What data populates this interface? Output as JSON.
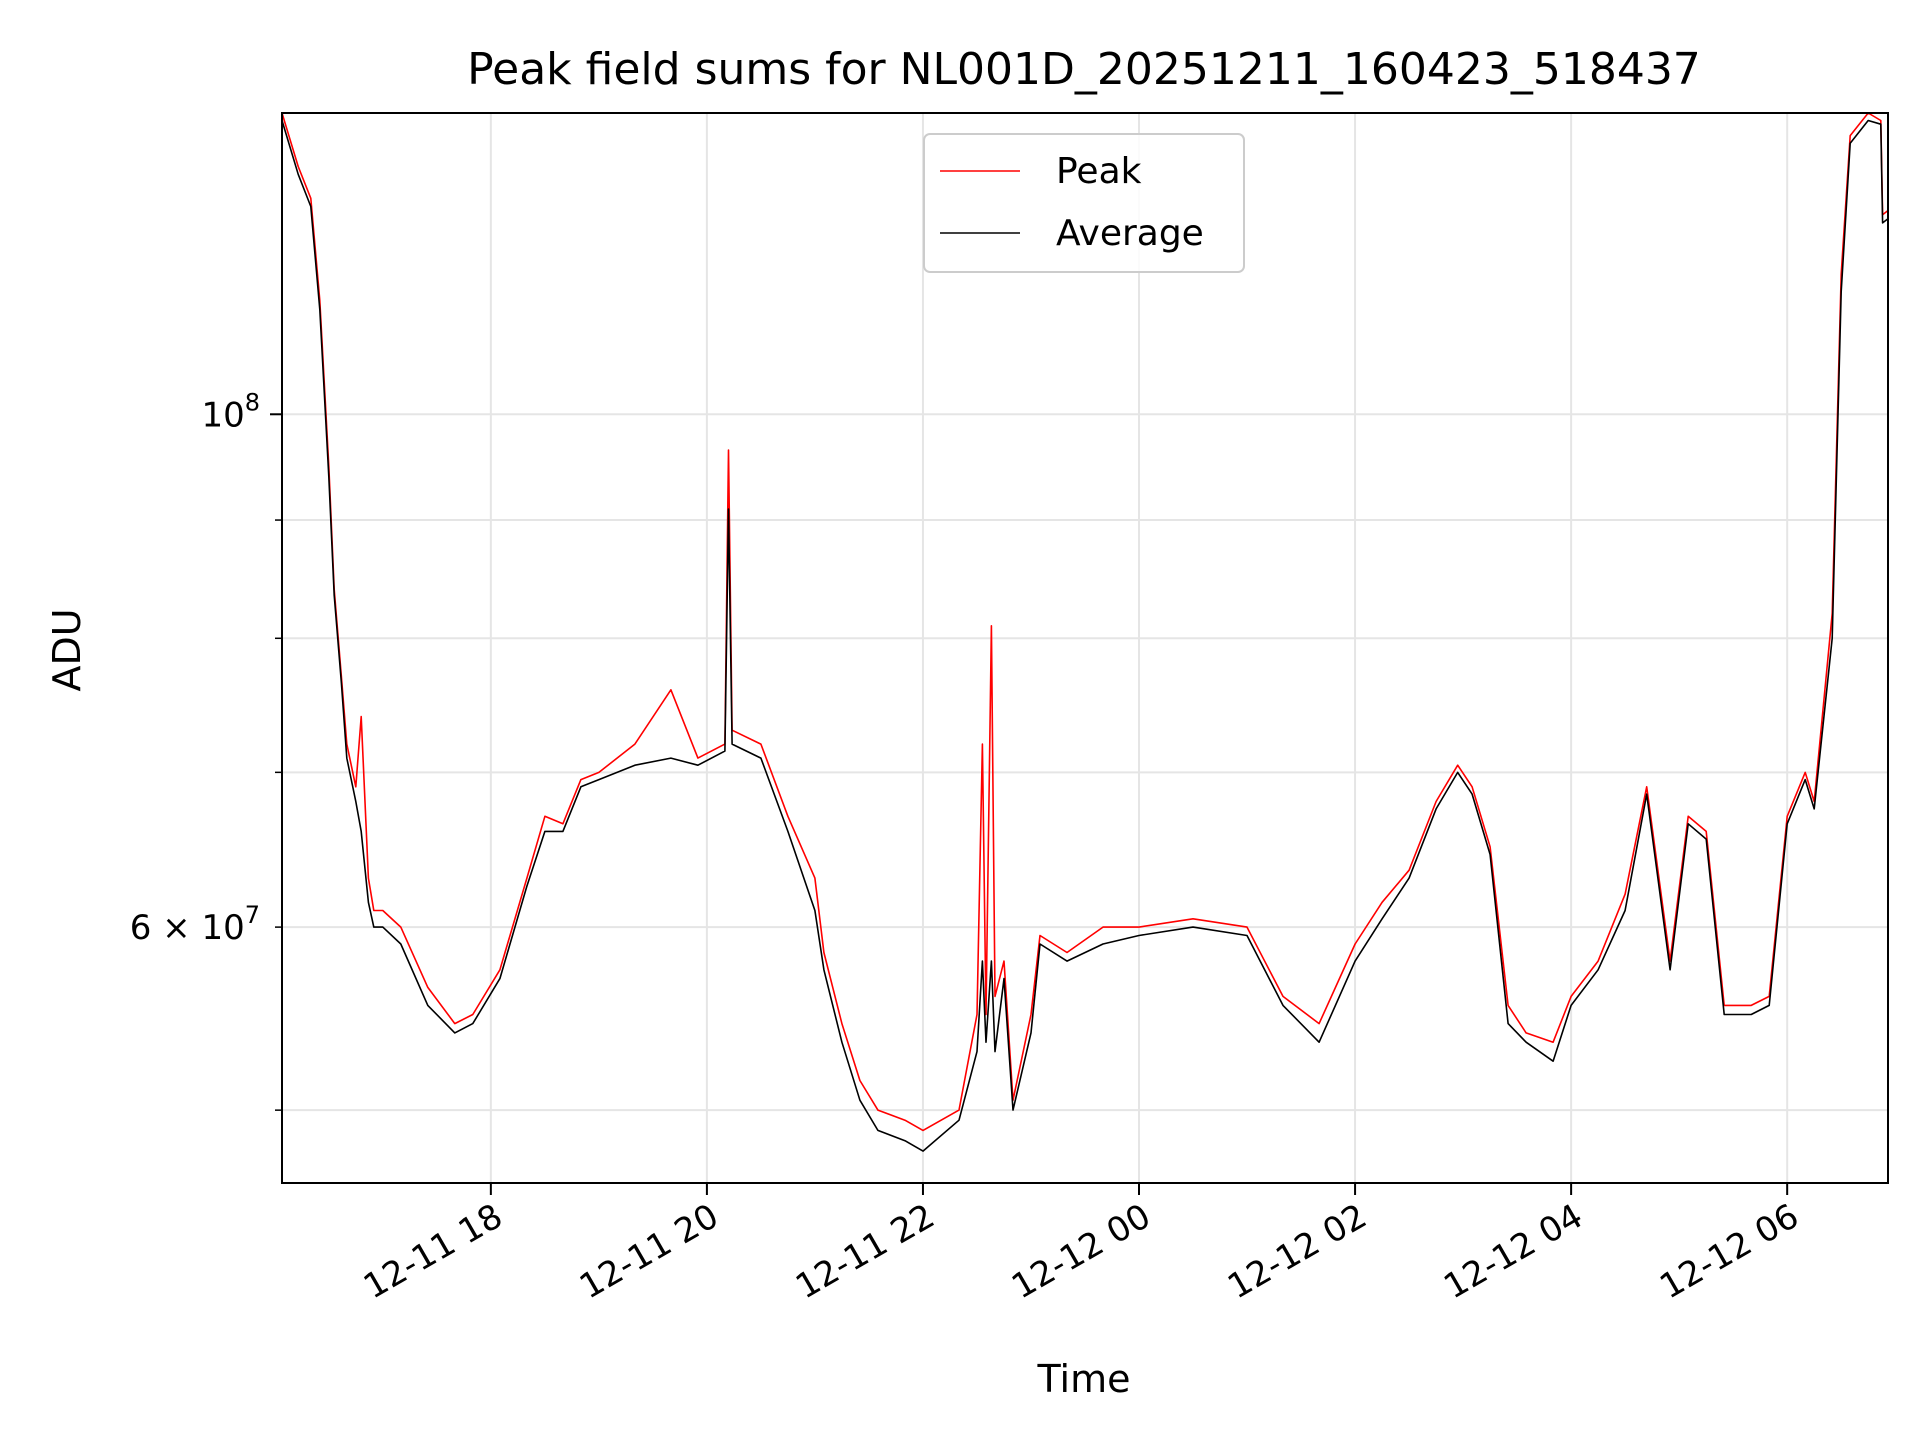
{
  "chart_data": {
    "type": "line",
    "title": "Peak field sums for NL001D_20251211_160423_518437",
    "xlabel": "Time",
    "ylabel": "ADU",
    "y_scale": "log",
    "grid": true,
    "legend_placement": "upper center",
    "xlim": [
      "2025-12-11 16:04",
      "2025-12-12 06:56"
    ],
    "ylim": [
      46500000,
      135000000
    ],
    "x_ticks": [
      {
        "value": "2025-12-11 18:00",
        "label": "12-11 18"
      },
      {
        "value": "2025-12-11 20:00",
        "label": "12-11 20"
      },
      {
        "value": "2025-12-11 22:00",
        "label": "12-11 22"
      },
      {
        "value": "2025-12-12 00:00",
        "label": "12-12 00"
      },
      {
        "value": "2025-12-12 02:00",
        "label": "12-12 02"
      },
      {
        "value": "2025-12-12 04:00",
        "label": "12-12 04"
      },
      {
        "value": "2025-12-12 06:00",
        "label": "12-12 06"
      }
    ],
    "y_major_ticks": [
      {
        "value": 100000000,
        "label": "10",
        "sup": "8"
      }
    ],
    "y_labeled_minor_ticks": [
      {
        "value": 60000000,
        "label": "6 × 10",
        "sup": "7"
      }
    ],
    "y_minor_ticks": [
      50000000,
      60000000,
      70000000,
      80000000,
      90000000
    ],
    "series": [
      {
        "name": "Peak",
        "color": "#ff0000",
        "x": [
          "2025-12-11 16:04",
          "2025-12-11 16:13",
          "2025-12-11 16:20",
          "2025-12-11 16:25",
          "2025-12-11 16:30",
          "2025-12-11 16:33",
          "2025-12-11 16:37",
          "2025-12-11 16:40",
          "2025-12-11 16:45",
          "2025-12-11 16:48",
          "2025-12-11 16:52",
          "2025-12-11 16:55",
          "2025-12-11 17:00",
          "2025-12-11 17:10",
          "2025-12-11 17:25",
          "2025-12-11 17:40",
          "2025-12-11 17:50",
          "2025-12-11 18:05",
          "2025-12-11 18:20",
          "2025-12-11 18:30",
          "2025-12-11 18:40",
          "2025-12-11 18:50",
          "2025-12-11 19:00",
          "2025-12-11 19:20",
          "2025-12-11 19:40",
          "2025-12-11 19:55",
          "2025-12-11 20:10",
          "2025-12-11 20:12",
          "2025-12-11 20:14",
          "2025-12-11 20:30",
          "2025-12-11 20:45",
          "2025-12-11 21:00",
          "2025-12-11 21:05",
          "2025-12-11 21:15",
          "2025-12-11 21:25",
          "2025-12-11 21:35",
          "2025-12-11 21:50",
          "2025-12-11 22:00",
          "2025-12-11 22:20",
          "2025-12-11 22:30",
          "2025-12-11 22:33",
          "2025-12-11 22:35",
          "2025-12-11 22:38",
          "2025-12-11 22:40",
          "2025-12-11 22:45",
          "2025-12-11 22:50",
          "2025-12-11 23:00",
          "2025-12-11 23:05",
          "2025-12-11 23:20",
          "2025-12-11 23:40",
          "2025-12-12 00:00",
          "2025-12-12 00:30",
          "2025-12-12 01:00",
          "2025-12-12 01:20",
          "2025-12-12 01:40",
          "2025-12-12 02:00",
          "2025-12-12 02:15",
          "2025-12-12 02:30",
          "2025-12-12 02:45",
          "2025-12-12 02:57",
          "2025-12-12 03:05",
          "2025-12-12 03:15",
          "2025-12-12 03:25",
          "2025-12-12 03:35",
          "2025-12-12 03:50",
          "2025-12-12 04:00",
          "2025-12-12 04:15",
          "2025-12-12 04:30",
          "2025-12-12 04:42",
          "2025-12-12 04:55",
          "2025-12-12 05:05",
          "2025-12-12 05:15",
          "2025-12-12 05:25",
          "2025-12-12 05:40",
          "2025-12-12 05:50",
          "2025-12-12 06:00",
          "2025-12-12 06:10",
          "2025-12-12 06:15",
          "2025-12-12 06:25",
          "2025-12-12 06:30",
          "2025-12-12 06:35",
          "2025-12-12 06:45",
          "2025-12-12 06:52",
          "2025-12-12 06:53",
          "2025-12-12 06:56"
        ],
        "y": [
          135000000,
          128000000,
          124000000,
          112000000,
          95000000,
          84000000,
          77000000,
          72000000,
          69000000,
          74000000,
          63000000,
          61000000,
          61000000,
          60000000,
          56500000,
          54500000,
          55000000,
          57500000,
          63000000,
          67000000,
          66500000,
          69500000,
          70000000,
          72000000,
          76000000,
          71000000,
          72000000,
          96500000,
          73000000,
          72000000,
          67000000,
          63000000,
          58500000,
          54500000,
          51500000,
          50000000,
          49500000,
          49000000,
          50000000,
          55000000,
          72000000,
          55000000,
          81000000,
          56000000,
          58000000,
          50500000,
          55000000,
          59500000,
          58500000,
          60000000,
          60000000,
          60500000,
          60000000,
          56000000,
          54500000,
          59000000,
          61500000,
          63500000,
          68000000,
          70500000,
          69000000,
          65000000,
          55500000,
          54000000,
          53500000,
          56000000,
          58000000,
          62000000,
          69000000,
          58000000,
          67000000,
          66000000,
          55500000,
          55500000,
          56000000,
          67000000,
          70000000,
          68000000,
          82000000,
          115000000,
          132000000,
          135000000,
          134000000,
          122000000,
          122500000
        ]
      },
      {
        "name": "Average",
        "color": "#000000",
        "x": [
          "2025-12-11 16:04",
          "2025-12-11 16:13",
          "2025-12-11 16:20",
          "2025-12-11 16:25",
          "2025-12-11 16:30",
          "2025-12-11 16:33",
          "2025-12-11 16:37",
          "2025-12-11 16:40",
          "2025-12-11 16:45",
          "2025-12-11 16:48",
          "2025-12-11 16:52",
          "2025-12-11 16:55",
          "2025-12-11 17:00",
          "2025-12-11 17:10",
          "2025-12-11 17:25",
          "2025-12-11 17:40",
          "2025-12-11 17:50",
          "2025-12-11 18:05",
          "2025-12-11 18:20",
          "2025-12-11 18:30",
          "2025-12-11 18:40",
          "2025-12-11 18:50",
          "2025-12-11 19:00",
          "2025-12-11 19:20",
          "2025-12-11 19:40",
          "2025-12-11 19:55",
          "2025-12-11 20:10",
          "2025-12-11 20:12",
          "2025-12-11 20:14",
          "2025-12-11 20:30",
          "2025-12-11 20:45",
          "2025-12-11 21:00",
          "2025-12-11 21:05",
          "2025-12-11 21:15",
          "2025-12-11 21:25",
          "2025-12-11 21:35",
          "2025-12-11 21:50",
          "2025-12-11 22:00",
          "2025-12-11 22:20",
          "2025-12-11 22:30",
          "2025-12-11 22:33",
          "2025-12-11 22:35",
          "2025-12-11 22:38",
          "2025-12-11 22:40",
          "2025-12-11 22:45",
          "2025-12-11 22:50",
          "2025-12-11 23:00",
          "2025-12-11 23:05",
          "2025-12-11 23:20",
          "2025-12-11 23:40",
          "2025-12-12 00:00",
          "2025-12-12 00:30",
          "2025-12-12 01:00",
          "2025-12-12 01:20",
          "2025-12-12 01:40",
          "2025-12-12 02:00",
          "2025-12-12 02:15",
          "2025-12-12 02:30",
          "2025-12-12 02:45",
          "2025-12-12 02:57",
          "2025-12-12 03:05",
          "2025-12-12 03:15",
          "2025-12-12 03:25",
          "2025-12-12 03:35",
          "2025-12-12 03:50",
          "2025-12-12 04:00",
          "2025-12-12 04:15",
          "2025-12-12 04:30",
          "2025-12-12 04:42",
          "2025-12-12 04:55",
          "2025-12-12 05:05",
          "2025-12-12 05:15",
          "2025-12-12 05:25",
          "2025-12-12 05:40",
          "2025-12-12 05:50",
          "2025-12-12 06:00",
          "2025-12-12 06:10",
          "2025-12-12 06:15",
          "2025-12-12 06:25",
          "2025-12-12 06:30",
          "2025-12-12 06:35",
          "2025-12-12 06:45",
          "2025-12-12 06:52",
          "2025-12-12 06:53",
          "2025-12-12 06:56"
        ],
        "y": [
          134000000,
          127000000,
          123000000,
          111000000,
          94000000,
          83500000,
          76500000,
          71000000,
          68000000,
          66000000,
          61500000,
          60000000,
          60000000,
          59000000,
          55500000,
          54000000,
          54500000,
          57000000,
          62500000,
          66000000,
          66000000,
          69000000,
          69500000,
          70500000,
          71000000,
          70500000,
          71500000,
          91000000,
          72000000,
          71000000,
          66000000,
          61000000,
          57500000,
          53500000,
          50500000,
          49000000,
          48500000,
          48000000,
          49500000,
          53000000,
          58000000,
          53500000,
          58000000,
          53000000,
          57000000,
          50000000,
          54000000,
          59000000,
          58000000,
          59000000,
          59500000,
          60000000,
          59500000,
          55500000,
          53500000,
          58000000,
          60500000,
          63000000,
          67500000,
          70000000,
          68500000,
          64500000,
          54500000,
          53500000,
          52500000,
          55500000,
          57500000,
          61000000,
          68500000,
          57500000,
          66500000,
          65500000,
          55000000,
          55000000,
          55500000,
          66500000,
          69500000,
          67500000,
          80000000,
          113000000,
          131000000,
          134000000,
          133500000,
          121000000,
          121500000
        ]
      }
    ]
  }
}
